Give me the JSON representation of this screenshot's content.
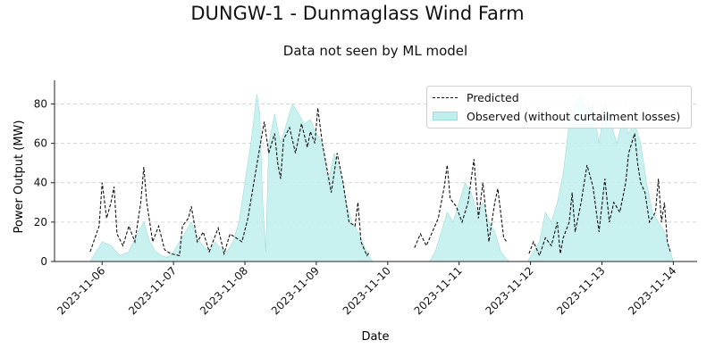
{
  "figure": {
    "suptitle": "DUNGW-1 - Dunmaglass Wind Farm",
    "subtitle": "Data not seen by ML model"
  },
  "colors": {
    "observed_fill": "#bfeeed",
    "observed_edge": "#9fdcdc",
    "predicted_line": "#111111",
    "grid": "#cccccc"
  },
  "chart_data": {
    "type": "line",
    "xlabel": "Date",
    "ylabel": "Power Output (MW)",
    "xlim": [
      "2023-11-05 08:00",
      "2023-11-14 08:00"
    ],
    "ylim": [
      0,
      92
    ],
    "xticks": [
      "2023-11-06",
      "2023-11-07",
      "2023-11-08",
      "2023-11-09",
      "2023-11-10",
      "2023-11-11",
      "2023-11-12",
      "2023-11-13",
      "2023-11-14"
    ],
    "yticks": [
      0,
      20,
      40,
      60,
      80
    ],
    "grid": "y, dashed",
    "legend_position": "top-right",
    "series": [
      {
        "name": "Predicted",
        "style": "dashed line",
        "segments": [
          [
            [
              "2023-11-05 20:00",
              5
            ],
            [
              "2023-11-05 23:00",
              18
            ],
            [
              "2023-11-06 00:00",
              40
            ],
            [
              "2023-11-06 01:30",
              22
            ],
            [
              "2023-11-06 03:00",
              30
            ],
            [
              "2023-11-06 04:00",
              38
            ],
            [
              "2023-11-06 05:00",
              14
            ],
            [
              "2023-11-06 07:00",
              8
            ],
            [
              "2023-11-06 09:00",
              18
            ],
            [
              "2023-11-06 11:00",
              10
            ],
            [
              "2023-11-06 13:00",
              30
            ],
            [
              "2023-11-06 14:00",
              48
            ],
            [
              "2023-11-06 15:00",
              30
            ],
            [
              "2023-11-06 17:00",
              10
            ],
            [
              "2023-11-06 19:00",
              18
            ],
            [
              "2023-11-06 21:00",
              6
            ],
            [
              "2023-11-06 23:00",
              4
            ],
            [
              "2023-11-07 02:00",
              3
            ],
            [
              "2023-11-07 03:00",
              18
            ],
            [
              "2023-11-07 05:00",
              22
            ],
            [
              "2023-11-07 06:00",
              28
            ],
            [
              "2023-11-07 08:00",
              10
            ],
            [
              "2023-11-07 10:00",
              15
            ],
            [
              "2023-11-07 12:00",
              5
            ],
            [
              "2023-11-07 15:00",
              17
            ],
            [
              "2023-11-07 17:00",
              4
            ],
            [
              "2023-11-07 19:00",
              14
            ],
            [
              "2023-11-07 21:00",
              12
            ],
            [
              "2023-11-07 23:00",
              10
            ],
            [
              "2023-11-08 01:00",
              22
            ],
            [
              "2023-11-08 03:00",
              40
            ],
            [
              "2023-11-08 05:00",
              58
            ],
            [
              "2023-11-08 06:30",
              71
            ],
            [
              "2023-11-08 08:00",
              55
            ],
            [
              "2023-11-08 10:00",
              65
            ],
            [
              "2023-11-08 11:00",
              50
            ],
            [
              "2023-11-08 12:00",
              42
            ],
            [
              "2023-11-08 13:00",
              62
            ],
            [
              "2023-11-08 15:00",
              68
            ],
            [
              "2023-11-08 17:00",
              55
            ],
            [
              "2023-11-08 19:00",
              70
            ],
            [
              "2023-11-08 21:00",
              58
            ],
            [
              "2023-11-08 22:00",
              66
            ],
            [
              "2023-11-08 23:30",
              60
            ],
            [
              "2023-11-09 00:30",
              78
            ],
            [
              "2023-11-09 02:00",
              60
            ],
            [
              "2023-11-09 03:00",
              52
            ],
            [
              "2023-11-09 05:00",
              35
            ],
            [
              "2023-11-09 07:00",
              55
            ],
            [
              "2023-11-09 09:00",
              40
            ],
            [
              "2023-11-09 11:00",
              20
            ],
            [
              "2023-11-09 13:00",
              18
            ],
            [
              "2023-11-09 14:00",
              30
            ],
            [
              "2023-11-09 15:00",
              10
            ],
            [
              "2023-11-09 17:00",
              3
            ],
            [
              "2023-11-09 18:00",
              5
            ]
          ],
          [
            [
              "2023-11-10 09:00",
              7
            ],
            [
              "2023-11-10 11:00",
              14
            ],
            [
              "2023-11-10 13:00",
              8
            ],
            [
              "2023-11-10 15:00",
              15
            ],
            [
              "2023-11-10 17:00",
              22
            ],
            [
              "2023-11-10 19:00",
              38
            ],
            [
              "2023-11-10 20:00",
              49
            ],
            [
              "2023-11-10 21:00",
              32
            ],
            [
              "2023-11-10 23:00",
              28
            ],
            [
              "2023-11-11 01:00",
              20
            ],
            [
              "2023-11-11 03:00",
              30
            ],
            [
              "2023-11-11 05:00",
              52
            ],
            [
              "2023-11-11 06:30",
              22
            ],
            [
              "2023-11-11 08:00",
              40
            ],
            [
              "2023-11-11 10:00",
              10
            ],
            [
              "2023-11-11 12:00",
              30
            ],
            [
              "2023-11-11 13:00",
              37
            ],
            [
              "2023-11-11 15:00",
              12
            ],
            [
              "2023-11-11 16:00",
              10
            ]
          ],
          [
            [
              "2023-11-11 23:30",
              4
            ],
            [
              "2023-11-12 01:00",
              10
            ],
            [
              "2023-11-12 03:00",
              3
            ],
            [
              "2023-11-12 05:00",
              12
            ],
            [
              "2023-11-12 07:00",
              8
            ],
            [
              "2023-11-12 09:00",
              20
            ],
            [
              "2023-11-12 10:00",
              4
            ],
            [
              "2023-11-12 11:00",
              12
            ],
            [
              "2023-11-12 13:00",
              20
            ],
            [
              "2023-11-12 14:00",
              35
            ],
            [
              "2023-11-12 15:00",
              15
            ],
            [
              "2023-11-12 17:00",
              30
            ],
            [
              "2023-11-12 19:00",
              49
            ],
            [
              "2023-11-12 21:00",
              38
            ],
            [
              "2023-11-12 23:00",
              15
            ],
            [
              "2023-11-13 01:00",
              42
            ],
            [
              "2023-11-13 02:30",
              20
            ],
            [
              "2023-11-13 04:00",
              30
            ],
            [
              "2023-11-13 06:00",
              25
            ],
            [
              "2023-11-13 08:00",
              40
            ],
            [
              "2023-11-13 09:00",
              55
            ],
            [
              "2023-11-13 11:00",
              65
            ],
            [
              "2023-11-13 12:00",
              50
            ],
            [
              "2023-11-13 13:00",
              40
            ],
            [
              "2023-11-13 14:30",
              35
            ],
            [
              "2023-11-13 16:00",
              20
            ],
            [
              "2023-11-13 18:00",
              25
            ],
            [
              "2023-11-13 19:00",
              42
            ],
            [
              "2023-11-13 20:00",
              20
            ],
            [
              "2023-11-13 21:00",
              30
            ],
            [
              "2023-11-13 22:00",
              10
            ],
            [
              "2023-11-13 23:00",
              5
            ]
          ]
        ]
      },
      {
        "name": "Observed (without curtailment losses)",
        "style": "filled area",
        "segments": [
          [
            [
              "2023-11-05 20:00",
              0
            ],
            [
              "2023-11-05 22:00",
              5
            ],
            [
              "2023-11-06 00:00",
              10
            ],
            [
              "2023-11-06 03:00",
              8
            ],
            [
              "2023-11-06 06:00",
              3
            ],
            [
              "2023-11-06 09:00",
              5
            ],
            [
              "2023-11-06 12:00",
              15
            ],
            [
              "2023-11-06 14:00",
              20
            ],
            [
              "2023-11-06 16:00",
              10
            ],
            [
              "2023-11-06 18:00",
              5
            ],
            [
              "2023-11-06 20:00",
              3
            ],
            [
              "2023-11-06 22:00",
              2
            ],
            [
              "2023-11-07 00:00",
              5
            ],
            [
              "2023-11-07 02:00",
              10
            ],
            [
              "2023-11-07 04:00",
              15
            ],
            [
              "2023-11-07 06:00",
              20
            ],
            [
              "2023-11-07 08:00",
              12
            ],
            [
              "2023-11-07 10:00",
              8
            ],
            [
              "2023-11-07 12:00",
              5
            ],
            [
              "2023-11-07 14:00",
              10
            ],
            [
              "2023-11-07 16:00",
              6
            ],
            [
              "2023-11-07 18:00",
              5
            ],
            [
              "2023-11-07 20:00",
              10
            ],
            [
              "2023-11-07 22:00",
              20
            ],
            [
              "2023-11-08 00:00",
              40
            ],
            [
              "2023-11-08 02:00",
              60
            ],
            [
              "2023-11-08 04:00",
              85
            ],
            [
              "2023-11-08 05:00",
              75
            ],
            [
              "2023-11-08 06:00",
              30
            ],
            [
              "2023-11-08 07:00",
              5
            ],
            [
              "2023-11-08 08:00",
              60
            ],
            [
              "2023-11-08 10:00",
              75
            ],
            [
              "2023-11-08 12:00",
              60
            ],
            [
              "2023-11-08 14:00",
              70
            ],
            [
              "2023-11-08 16:00",
              80
            ],
            [
              "2023-11-08 18:00",
              75
            ],
            [
              "2023-11-08 20:00",
              70
            ],
            [
              "2023-11-08 22:00",
              72
            ],
            [
              "2023-11-09 00:00",
              65
            ],
            [
              "2023-11-09 02:00",
              60
            ],
            [
              "2023-11-09 04:00",
              40
            ],
            [
              "2023-11-09 06:00",
              55
            ],
            [
              "2023-11-09 08:00",
              45
            ],
            [
              "2023-11-09 10:00",
              30
            ],
            [
              "2023-11-09 12:00",
              20
            ],
            [
              "2023-11-09 14:00",
              15
            ],
            [
              "2023-11-09 16:00",
              8
            ],
            [
              "2023-11-09 18:00",
              2
            ],
            [
              "2023-11-09 19:00",
              0
            ]
          ],
          [
            [
              "2023-11-10 14:00",
              0
            ],
            [
              "2023-11-10 16:00",
              5
            ],
            [
              "2023-11-10 18:00",
              15
            ],
            [
              "2023-11-10 20:00",
              25
            ],
            [
              "2023-11-10 22:00",
              20
            ],
            [
              "2023-11-11 00:00",
              30
            ],
            [
              "2023-11-11 02:00",
              40
            ],
            [
              "2023-11-11 04:00",
              35
            ],
            [
              "2023-11-11 06:00",
              25
            ],
            [
              "2023-11-11 08:00",
              30
            ],
            [
              "2023-11-11 10:00",
              20
            ],
            [
              "2023-11-11 12:00",
              15
            ],
            [
              "2023-11-11 14:00",
              5
            ],
            [
              "2023-11-11 16:00",
              1
            ],
            [
              "2023-11-11 17:00",
              0
            ]
          ],
          [
            [
              "2023-11-11 23:00",
              0
            ],
            [
              "2023-11-12 01:00",
              5
            ],
            [
              "2023-11-12 03:00",
              10
            ],
            [
              "2023-11-12 05:00",
              25
            ],
            [
              "2023-11-12 07:00",
              20
            ],
            [
              "2023-11-12 09:00",
              30
            ],
            [
              "2023-11-12 11:00",
              45
            ],
            [
              "2023-11-12 13:00",
              70
            ],
            [
              "2023-11-12 15:00",
              80
            ],
            [
              "2023-11-12 17:00",
              85
            ],
            [
              "2023-11-12 19:00",
              75
            ],
            [
              "2023-11-12 21:00",
              80
            ],
            [
              "2023-11-12 23:00",
              60
            ],
            [
              "2023-11-13 01:00",
              80
            ],
            [
              "2023-11-13 03:00",
              70
            ],
            [
              "2023-11-13 05:00",
              60
            ],
            [
              "2023-11-13 07:00",
              72
            ],
            [
              "2023-11-13 09:00",
              65
            ],
            [
              "2023-11-13 11:00",
              70
            ],
            [
              "2023-11-13 13:00",
              60
            ],
            [
              "2023-11-13 15:00",
              40
            ],
            [
              "2023-11-13 17:00",
              25
            ],
            [
              "2023-11-13 19:00",
              20
            ],
            [
              "2023-11-13 21:00",
              15
            ],
            [
              "2023-11-13 23:00",
              5
            ],
            [
              "2023-11-14 00:00",
              0
            ]
          ]
        ]
      }
    ]
  }
}
